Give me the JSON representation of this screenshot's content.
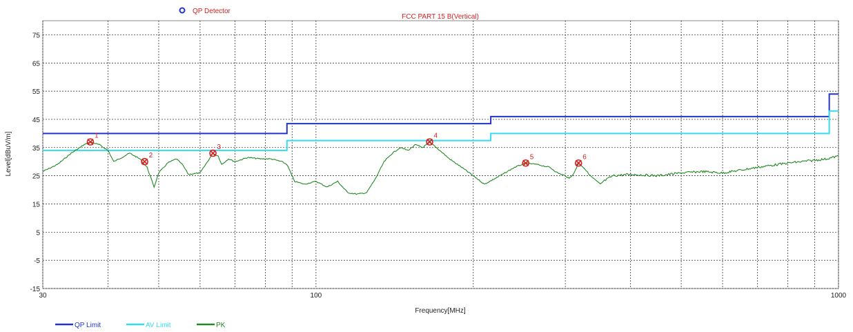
{
  "chart_data": {
    "type": "line",
    "title": "FCC PART 15 B(Vertical)",
    "detector_label": "QP Detector",
    "xlabel": "Frequency[MHz]",
    "ylabel": "Level[dBuV/m]",
    "xscale": "log",
    "xlim": [
      30,
      1000
    ],
    "ylim": [
      -15,
      80
    ],
    "x_ticks": [
      30,
      100,
      1000
    ],
    "y_ticks": [
      -15,
      -5,
      5,
      15,
      25,
      35,
      45,
      55,
      65,
      75
    ],
    "grid": true,
    "legend_position": "bottom-left",
    "series": [
      {
        "name": "QP Limit",
        "color": "#2233cc",
        "step": true,
        "points": [
          [
            30,
            40
          ],
          [
            88,
            40
          ],
          [
            88,
            43.5
          ],
          [
            216,
            43.5
          ],
          [
            216,
            46
          ],
          [
            960,
            46
          ],
          [
            960,
            54
          ],
          [
            1000,
            54
          ]
        ]
      },
      {
        "name": "AV Limit",
        "color": "#33ddee",
        "step": true,
        "points": [
          [
            30,
            34
          ],
          [
            88,
            34
          ],
          [
            88,
            37.5
          ],
          [
            216,
            37.5
          ],
          [
            216,
            40
          ],
          [
            960,
            40
          ],
          [
            960,
            48
          ],
          [
            1000,
            48
          ]
        ]
      },
      {
        "name": "PK",
        "color": "#228822",
        "points": [
          [
            30,
            26.5
          ],
          [
            32,
            29
          ],
          [
            34,
            33
          ],
          [
            36,
            36
          ],
          [
            37,
            37
          ],
          [
            38.5,
            36
          ],
          [
            40,
            34
          ],
          [
            41,
            30
          ],
          [
            42,
            31
          ],
          [
            44,
            33
          ],
          [
            46,
            31
          ],
          [
            47.5,
            28
          ],
          [
            49,
            21
          ],
          [
            50,
            26
          ],
          [
            52,
            29.5
          ],
          [
            54,
            31
          ],
          [
            55.5,
            29
          ],
          [
            57,
            25.5
          ],
          [
            60,
            26
          ],
          [
            62,
            30
          ],
          [
            63.5,
            33
          ],
          [
            65,
            32
          ],
          [
            66,
            29
          ],
          [
            68,
            31
          ],
          [
            70,
            30
          ],
          [
            74,
            31.5
          ],
          [
            78,
            31
          ],
          [
            82,
            31
          ],
          [
            86,
            30
          ],
          [
            88,
            29
          ],
          [
            91,
            23
          ],
          [
            95,
            22
          ],
          [
            100,
            23
          ],
          [
            105,
            21
          ],
          [
            110,
            23
          ],
          [
            115,
            19
          ],
          [
            120,
            18.5
          ],
          [
            125,
            19
          ],
          [
            130,
            24
          ],
          [
            135,
            30
          ],
          [
            140,
            33
          ],
          [
            145,
            35
          ],
          [
            150,
            34
          ],
          [
            155,
            36
          ],
          [
            160,
            35
          ],
          [
            165,
            37
          ],
          [
            170,
            35
          ],
          [
            175,
            33
          ],
          [
            180,
            31
          ],
          [
            190,
            28
          ],
          [
            200,
            25
          ],
          [
            210,
            22
          ],
          [
            220,
            24
          ],
          [
            230,
            26
          ],
          [
            240,
            28
          ],
          [
            252,
            29.5
          ],
          [
            265,
            29
          ],
          [
            280,
            28
          ],
          [
            290,
            26
          ],
          [
            300,
            25
          ],
          [
            305,
            24
          ],
          [
            312,
            26
          ],
          [
            318,
            29.5
          ],
          [
            325,
            28
          ],
          [
            335,
            25
          ],
          [
            350,
            22
          ],
          [
            355,
            23
          ],
          [
            370,
            25
          ],
          [
            400,
            25.5
          ],
          [
            450,
            25
          ],
          [
            500,
            26
          ],
          [
            550,
            26.5
          ],
          [
            600,
            26
          ],
          [
            650,
            27
          ],
          [
            700,
            28
          ],
          [
            800,
            29.5
          ],
          [
            900,
            30.5
          ],
          [
            950,
            31
          ],
          [
            1000,
            32
          ]
        ]
      }
    ],
    "markers": [
      {
        "label": "1",
        "x": 37,
        "y": 37
      },
      {
        "label": "2",
        "x": 47,
        "y": 30
      },
      {
        "label": "3",
        "x": 63.5,
        "y": 33
      },
      {
        "label": "4",
        "x": 165,
        "y": 37
      },
      {
        "label": "5",
        "x": 252,
        "y": 29.5
      },
      {
        "label": "6",
        "x": 318,
        "y": 29.5
      }
    ]
  },
  "colors": {
    "marker": "#d62020",
    "detector_marker": "#2233cc",
    "grid": "#1a1a1a",
    "frame": "#888888"
  }
}
